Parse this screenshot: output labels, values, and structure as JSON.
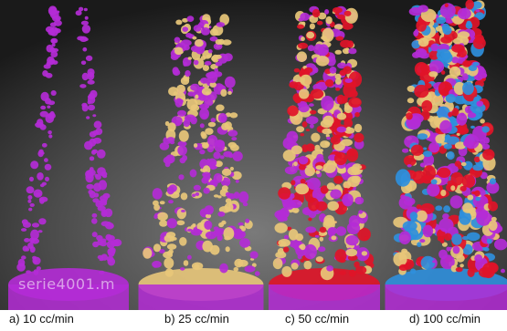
{
  "figure": {
    "panels": [
      {
        "id": "a",
        "caption": "a) 10 cc/min",
        "colors": [
          "#b42bd6"
        ]
      },
      {
        "id": "b",
        "caption": "b) 25 cc/min",
        "colors": [
          "#b42bd6",
          "#e8c77a"
        ]
      },
      {
        "id": "c",
        "caption": "c) 50 cc/min",
        "colors": [
          "#b42bd6",
          "#e8c77a",
          "#e01428"
        ]
      },
      {
        "id": "d",
        "caption": "d) 100 cc/min",
        "colors": [
          "#b42bd6",
          "#e8c77a",
          "#e01428",
          "#2f8fdc"
        ]
      }
    ],
    "watermark": "serie4001.m",
    "background_colors": [
      "#1e1e1e",
      "#6a6a6a"
    ]
  }
}
